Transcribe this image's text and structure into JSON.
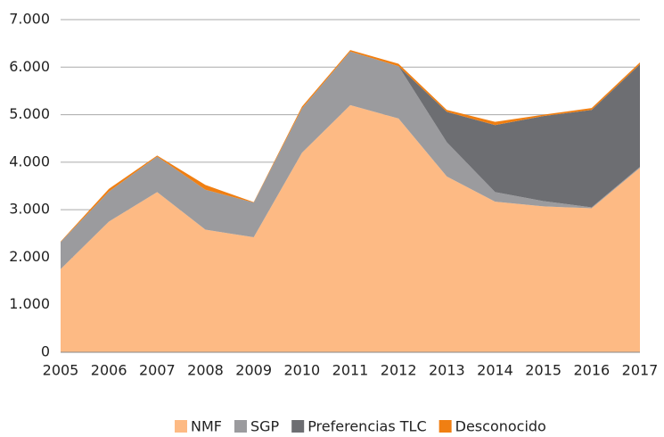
{
  "chart_data": {
    "type": "stacked_area",
    "categories": [
      "2005",
      "2006",
      "2007",
      "2008",
      "2009",
      "2010",
      "2011",
      "2012",
      "2013",
      "2014",
      "2015",
      "2016",
      "2017"
    ],
    "series": [
      {
        "name": "NMF",
        "color": "#fdba84",
        "values": [
          1750,
          2750,
          3370,
          2580,
          2420,
          4200,
          5200,
          4920,
          3700,
          3170,
          3070,
          3030,
          3880
        ]
      },
      {
        "name": "SGP",
        "color": "#9b9b9e",
        "values": [
          570,
          630,
          750,
          840,
          730,
          930,
          1130,
          1100,
          720,
          200,
          110,
          20,
          20
        ]
      },
      {
        "name": "Preferencias TLC",
        "color": "#6d6e72",
        "values": [
          0,
          0,
          0,
          0,
          0,
          0,
          0,
          0,
          640,
          1410,
          1790,
          2050,
          2160
        ]
      },
      {
        "name": "Desconocido",
        "color": "#f07f12",
        "values": [
          10,
          60,
          20,
          100,
          10,
          40,
          30,
          50,
          40,
          70,
          30,
          40,
          40
        ]
      }
    ],
    "ylim": [
      0,
      7000
    ],
    "yticks": [
      0,
      {
        "value": 1000,
        "label": "1.000"
      },
      {
        "value": 2000,
        "label": "2.000"
      },
      {
        "value": 3000,
        "label": "3.000"
      },
      {
        "value": 4000,
        "label": "4.000"
      },
      {
        "value": 5000,
        "label": "5.000"
      },
      {
        "value": 6000,
        "label": "6.000"
      },
      {
        "value": 7000,
        "label": "7.000"
      }
    ],
    "grid": true,
    "legend": "bottom"
  }
}
